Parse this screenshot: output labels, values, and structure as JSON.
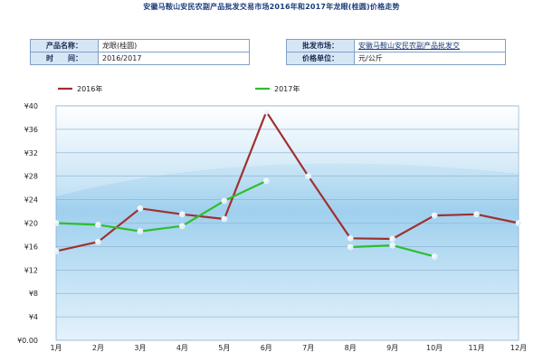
{
  "title": "安徽马鞍山安民农副产品批发交易市场2016年和2017年龙眼(桂圆)价格走势",
  "info": {
    "product_label": "产品名称：",
    "product_value": "龙眼(桂圆)",
    "period_label": "时　　间：",
    "period_value": "2016/2017",
    "market_label": "批发市场：",
    "market_value": "安徽马鞍山安民农副产品批发交",
    "unit_label": "价格单位：",
    "unit_value": "元/公斤"
  },
  "colors": {
    "series_2016": "#a03030",
    "series_2017": "#2dbf2d",
    "grid": "#8aaecf",
    "plot_bg_top": "#ffffff",
    "plot_bg_mid": "#9fd0ee",
    "plot_bg_bottom": "#e4f2fb"
  },
  "chart_data": {
    "type": "line",
    "title": "安徽马鞍山安民农副产品批发交易市场2016年和2017年龙眼(桂圆)价格走势",
    "xlabel": "",
    "ylabel": "",
    "categories": [
      "1月",
      "2月",
      "3月",
      "4月",
      "5月",
      "6月",
      "7月",
      "8月",
      "9月",
      "10月",
      "11月",
      "12月"
    ],
    "y_ticks": [
      "¥0.00",
      "¥4",
      "¥8",
      "¥12",
      "¥16",
      "¥20",
      "¥24",
      "¥28",
      "¥32",
      "¥36",
      "¥40"
    ],
    "ylim": [
      0,
      40
    ],
    "grid": true,
    "legend_position": "top",
    "series": [
      {
        "name": "2016年",
        "values": [
          15.2,
          16.8,
          22.5,
          21.5,
          20.7,
          39.0,
          28.0,
          17.4,
          17.3,
          21.3,
          21.5,
          20.0
        ]
      },
      {
        "name": "2017年",
        "values": [
          20.0,
          19.7,
          18.6,
          19.5,
          23.8,
          27.2,
          null,
          15.9,
          16.2,
          14.3,
          null,
          null
        ]
      }
    ]
  }
}
